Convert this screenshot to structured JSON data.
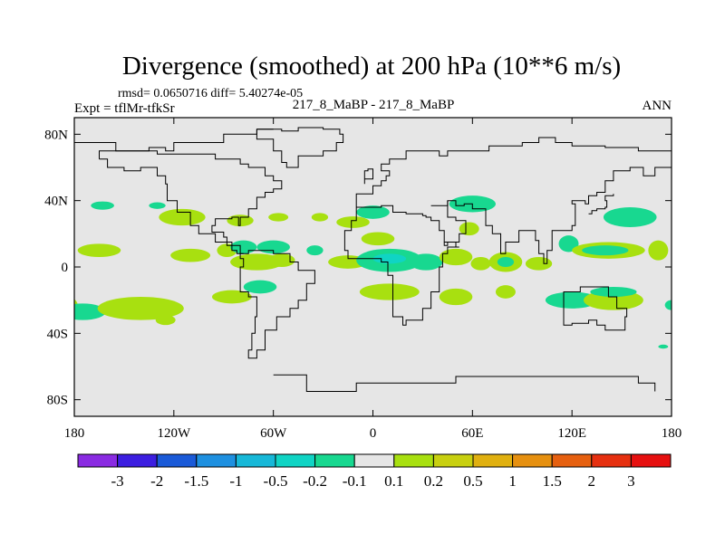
{
  "chart_data": {
    "type": "heatmap",
    "title": "Divergence (smoothed) at 200 hPa (10**6 m/s)",
    "stats_label": "rmsd= 0.0650716 diff= 5.40274e-05",
    "experiment_label": "Expt = tflMr-tfkSr",
    "case_label": "217_8_MaBP - 217_8_MaBP",
    "season_label": "ANN",
    "x_ticks": [
      {
        "value": -180,
        "label": "180"
      },
      {
        "value": -120,
        "label": "120W"
      },
      {
        "value": -60,
        "label": "60W"
      },
      {
        "value": 0,
        "label": "0"
      },
      {
        "value": 60,
        "label": "60E"
      },
      {
        "value": 120,
        "label": "120E"
      },
      {
        "value": 180,
        "label": "180"
      }
    ],
    "y_ticks": [
      {
        "value": 80,
        "label": "80N"
      },
      {
        "value": 40,
        "label": "40N"
      },
      {
        "value": 0,
        "label": "0"
      },
      {
        "value": -40,
        "label": "40S"
      },
      {
        "value": -80,
        "label": "80S"
      }
    ],
    "xlim": [
      -180,
      180
    ],
    "ylim": [
      -90,
      90
    ],
    "colorbar": {
      "colors": [
        "#8a2be2",
        "#3c1ee0",
        "#1a5ad8",
        "#1e90e0",
        "#17b8d8",
        "#10d4c4",
        "#18d890",
        "#e6e6e6",
        "#a8e010",
        "#c8d010",
        "#e0b010",
        "#e69010",
        "#e66010",
        "#e63010",
        "#e61010"
      ],
      "labels": [
        "-3",
        "-2",
        "-1.5",
        "-1",
        "-0.5",
        "-0.2",
        "-0.1",
        "0.1",
        "0.2",
        "0.5",
        "1",
        "1.5",
        "2",
        "3"
      ]
    },
    "colors": {
      "background_field": "#e6e6e6",
      "coast": "#000000",
      "pos_weak": "#a8e010",
      "neg_weak": "#18d890",
      "neg_mid": "#10d4c4"
    },
    "blobs": [
      {
        "lon": -163,
        "lat": 37,
        "w": 7,
        "h": 2.5,
        "level": "neg_weak"
      },
      {
        "lon": -130,
        "lat": 37,
        "w": 5,
        "h": 2,
        "level": "neg_weak"
      },
      {
        "lon": -115,
        "lat": 30,
        "w": 14,
        "h": 5,
        "level": "pos_weak"
      },
      {
        "lon": -80,
        "lat": 28,
        "w": 8,
        "h": 3.5,
        "level": "pos_weak"
      },
      {
        "lon": -57,
        "lat": 30,
        "w": 6,
        "h": 2.5,
        "level": "pos_weak"
      },
      {
        "lon": -32,
        "lat": 30,
        "w": 5,
        "h": 2.5,
        "level": "pos_weak"
      },
      {
        "lon": -12,
        "lat": 27,
        "w": 10,
        "h": 3.5,
        "level": "pos_weak"
      },
      {
        "lon": 0,
        "lat": 33,
        "w": 10,
        "h": 4,
        "level": "neg_weak"
      },
      {
        "lon": 3,
        "lat": 17,
        "w": 10,
        "h": 4,
        "level": "pos_weak"
      },
      {
        "lon": 60,
        "lat": 38,
        "w": 14,
        "h": 5,
        "level": "neg_weak"
      },
      {
        "lon": 58,
        "lat": 23,
        "w": 6,
        "h": 4,
        "level": "pos_weak"
      },
      {
        "lon": 155,
        "lat": 30,
        "w": 16,
        "h": 6,
        "level": "neg_weak"
      },
      {
        "lon": -165,
        "lat": 10,
        "w": 13,
        "h": 4,
        "level": "pos_weak"
      },
      {
        "lon": -110,
        "lat": 7,
        "w": 12,
        "h": 4,
        "level": "pos_weak"
      },
      {
        "lon": -88,
        "lat": 10,
        "w": 6,
        "h": 4,
        "level": "pos_weak"
      },
      {
        "lon": -78,
        "lat": 12,
        "w": 8,
        "h": 4,
        "level": "neg_weak"
      },
      {
        "lon": -60,
        "lat": 12,
        "w": 10,
        "h": 4,
        "level": "neg_weak"
      },
      {
        "lon": -70,
        "lat": 3,
        "w": 16,
        "h": 5,
        "level": "pos_weak"
      },
      {
        "lon": -55,
        "lat": 4,
        "w": 8,
        "h": 4,
        "level": "pos_weak"
      },
      {
        "lon": -35,
        "lat": 10,
        "w": 5,
        "h": 3,
        "level": "neg_weak"
      },
      {
        "lon": -15,
        "lat": 3,
        "w": 12,
        "h": 4,
        "level": "pos_weak"
      },
      {
        "lon": 10,
        "lat": 4,
        "w": 20,
        "h": 7,
        "level": "neg_weak"
      },
      {
        "lon": 10,
        "lat": 5,
        "w": 10,
        "h": 3,
        "level": "neg_mid"
      },
      {
        "lon": 32,
        "lat": 3,
        "w": 10,
        "h": 5,
        "level": "neg_weak"
      },
      {
        "lon": 50,
        "lat": 6,
        "w": 10,
        "h": 5,
        "level": "pos_weak"
      },
      {
        "lon": 65,
        "lat": 2,
        "w": 6,
        "h": 4,
        "level": "pos_weak"
      },
      {
        "lon": 80,
        "lat": 3,
        "w": 10,
        "h": 6,
        "level": "pos_weak"
      },
      {
        "lon": 80,
        "lat": 3,
        "w": 5,
        "h": 3,
        "level": "neg_weak"
      },
      {
        "lon": 100,
        "lat": 2,
        "w": 8,
        "h": 4,
        "level": "pos_weak"
      },
      {
        "lon": 118,
        "lat": 14,
        "w": 6,
        "h": 5,
        "level": "neg_weak"
      },
      {
        "lon": 142,
        "lat": 10,
        "w": 22,
        "h": 5,
        "level": "pos_weak"
      },
      {
        "lon": 140,
        "lat": 10,
        "w": 14,
        "h": 3,
        "level": "neg_weak"
      },
      {
        "lon": 172,
        "lat": 10,
        "w": 6,
        "h": 6,
        "level": "pos_weak"
      },
      {
        "lon": -182,
        "lat": -23,
        "w": 4,
        "h": 4,
        "level": "pos_weak"
      },
      {
        "lon": -175,
        "lat": -27,
        "w": 14,
        "h": 5,
        "level": "neg_weak"
      },
      {
        "lon": -140,
        "lat": -25,
        "w": 26,
        "h": 7,
        "level": "pos_weak"
      },
      {
        "lon": -125,
        "lat": -32,
        "w": 6,
        "h": 3,
        "level": "pos_weak"
      },
      {
        "lon": -85,
        "lat": -18,
        "w": 12,
        "h": 4,
        "level": "pos_weak"
      },
      {
        "lon": -68,
        "lat": -12,
        "w": 10,
        "h": 4,
        "level": "neg_weak"
      },
      {
        "lon": 10,
        "lat": -15,
        "w": 18,
        "h": 5,
        "level": "pos_weak"
      },
      {
        "lon": 50,
        "lat": -18,
        "w": 10,
        "h": 5,
        "level": "pos_weak"
      },
      {
        "lon": 80,
        "lat": -15,
        "w": 6,
        "h": 4,
        "level": "pos_weak"
      },
      {
        "lon": 120,
        "lat": -20,
        "w": 16,
        "h": 5,
        "level": "neg_weak"
      },
      {
        "lon": 145,
        "lat": -20,
        "w": 18,
        "h": 6,
        "level": "pos_weak"
      },
      {
        "lon": 145,
        "lat": -15,
        "w": 14,
        "h": 3,
        "level": "neg_weak"
      },
      {
        "lon": 180,
        "lat": -23,
        "w": 4,
        "h": 3,
        "level": "neg_weak"
      },
      {
        "lon": 175,
        "lat": -48,
        "w": 3,
        "h": 1.2,
        "level": "neg_weak"
      }
    ],
    "coastlines": [
      [
        [
          -180,
          75
        ],
        [
          -160,
          75
        ],
        [
          -155,
          70
        ],
        [
          -140,
          70
        ],
        [
          -135,
          72
        ],
        [
          -125,
          70
        ],
        [
          -120,
          75
        ],
        [
          -100,
          75
        ],
        [
          -90,
          80
        ],
        [
          -70,
          83
        ],
        [
          -60,
          83
        ]
      ],
      [
        [
          -70,
          83
        ],
        [
          -55,
          82
        ],
        [
          -45,
          84
        ],
        [
          -30,
          83
        ],
        [
          -20,
          80
        ],
        [
          -18,
          75
        ],
        [
          -22,
          70
        ],
        [
          -30,
          67
        ],
        [
          -45,
          60
        ],
        [
          -52,
          63
        ],
        [
          -55,
          70
        ],
        [
          -60,
          77
        ],
        [
          -70,
          83
        ]
      ],
      [
        [
          -165,
          65
        ],
        [
          -160,
          60
        ],
        [
          -150,
          58
        ],
        [
          -140,
          60
        ],
        [
          -130,
          55
        ],
        [
          -125,
          50
        ],
        [
          -124,
          40
        ],
        [
          -118,
          33
        ],
        [
          -110,
          25
        ],
        [
          -105,
          20
        ],
        [
          -95,
          15
        ],
        [
          -88,
          13
        ],
        [
          -80,
          8
        ],
        [
          -78,
          8
        ],
        [
          -82,
          10
        ],
        [
          -85,
          15
        ],
        [
          -88,
          18
        ],
        [
          -90,
          21
        ],
        [
          -97,
          25
        ],
        [
          -95,
          29
        ],
        [
          -85,
          30
        ],
        [
          -81,
          25
        ],
        [
          -80,
          30
        ],
        [
          -75,
          35
        ],
        [
          -70,
          42
        ],
        [
          -65,
          45
        ],
        [
          -60,
          47
        ],
        [
          -55,
          52
        ],
        [
          -60,
          55
        ],
        [
          -65,
          60
        ],
        [
          -75,
          62
        ],
        [
          -80,
          65
        ],
        [
          -90,
          65
        ],
        [
          -95,
          68
        ],
        [
          -110,
          68
        ],
        [
          -130,
          70
        ],
        [
          -150,
          70
        ],
        [
          -165,
          65
        ]
      ],
      [
        [
          -80,
          8
        ],
        [
          -75,
          10
        ],
        [
          -65,
          10
        ],
        [
          -60,
          8
        ],
        [
          -50,
          3
        ],
        [
          -45,
          -2
        ],
        [
          -35,
          -5
        ],
        [
          -35,
          -10
        ],
        [
          -40,
          -20
        ],
        [
          -45,
          -25
        ],
        [
          -50,
          -30
        ],
        [
          -58,
          -38
        ],
        [
          -65,
          -42
        ],
        [
          -65,
          -50
        ],
        [
          -70,
          -55
        ],
        [
          -75,
          -50
        ],
        [
          -73,
          -40
        ],
        [
          -71,
          -30
        ],
        [
          -70,
          -18
        ],
        [
          -75,
          -15
        ],
        [
          -80,
          -5
        ],
        [
          -80,
          0
        ],
        [
          -78,
          5
        ],
        [
          -80,
          8
        ]
      ],
      [
        [
          -10,
          36
        ],
        [
          -5,
          36
        ],
        [
          5,
          37
        ],
        [
          10,
          37
        ],
        [
          12,
          33
        ],
        [
          20,
          32
        ],
        [
          30,
          31
        ],
        [
          32,
          30
        ],
        [
          35,
          28
        ],
        [
          40,
          22
        ],
        [
          43,
          15
        ],
        [
          50,
          12
        ],
        [
          52,
          12
        ],
        [
          45,
          8
        ],
        [
          42,
          0
        ],
        [
          40,
          -5
        ],
        [
          40,
          -15
        ],
        [
          35,
          -25
        ],
        [
          30,
          -32
        ],
        [
          20,
          -35
        ],
        [
          18,
          -30
        ],
        [
          12,
          -18
        ],
        [
          12,
          -5
        ],
        [
          9,
          3
        ],
        [
          5,
          5
        ],
        [
          -5,
          5
        ],
        [
          -10,
          5
        ],
        [
          -15,
          10
        ],
        [
          -17,
          15
        ],
        [
          -17,
          22
        ],
        [
          -13,
          28
        ],
        [
          -10,
          36
        ]
      ],
      [
        [
          -10,
          36
        ],
        [
          -10,
          44
        ],
        [
          -5,
          44
        ],
        [
          0,
          49
        ],
        [
          5,
          52
        ],
        [
          8,
          55
        ],
        [
          10,
          58
        ],
        [
          5,
          62
        ],
        [
          10,
          65
        ],
        [
          20,
          70
        ],
        [
          30,
          70
        ],
        [
          40,
          67
        ],
        [
          45,
          70
        ],
        [
          60,
          70
        ],
        [
          70,
          73
        ],
        [
          80,
          73
        ],
        [
          90,
          75
        ],
        [
          100,
          78
        ],
        [
          110,
          75
        ],
        [
          120,
          73
        ],
        [
          140,
          72
        ],
        [
          160,
          70
        ],
        [
          170,
          70
        ],
        [
          180,
          67
        ]
      ],
      [
        [
          35,
          37
        ],
        [
          45,
          40
        ],
        [
          50,
          37
        ],
        [
          55,
          38
        ],
        [
          60,
          35
        ],
        [
          68,
          25
        ],
        [
          72,
          20
        ],
        [
          77,
          8
        ],
        [
          80,
          15
        ],
        [
          88,
          22
        ],
        [
          92,
          22
        ],
        [
          98,
          16
        ],
        [
          100,
          8
        ],
        [
          103,
          2
        ],
        [
          105,
          10
        ],
        [
          108,
          16
        ],
        [
          108,
          22
        ],
        [
          120,
          25
        ],
        [
          122,
          30
        ],
        [
          122,
          38
        ],
        [
          120,
          40
        ],
        [
          128,
          38
        ],
        [
          130,
          43
        ],
        [
          135,
          45
        ],
        [
          140,
          52
        ],
        [
          145,
          58
        ],
        [
          155,
          60
        ],
        [
          160,
          60
        ],
        [
          163,
          55
        ],
        [
          170,
          60
        ],
        [
          180,
          65
        ]
      ],
      [
        [
          45,
          40
        ],
        [
          45,
          30
        ],
        [
          50,
          28
        ],
        [
          56,
          25
        ],
        [
          56,
          20
        ],
        [
          52,
          15
        ],
        [
          45,
          13
        ],
        [
          43,
          15
        ]
      ],
      [
        [
          115,
          -22
        ],
        [
          115,
          -35
        ],
        [
          120,
          -34
        ],
        [
          130,
          -32
        ],
        [
          135,
          -35
        ],
        [
          140,
          -38
        ],
        [
          148,
          -38
        ],
        [
          152,
          -30
        ],
        [
          153,
          -25
        ],
        [
          147,
          -18
        ],
        [
          142,
          -12
        ],
        [
          137,
          -12
        ],
        [
          130,
          -12
        ],
        [
          125,
          -15
        ],
        [
          115,
          -22
        ]
      ],
      [
        [
          130,
          32
        ],
        [
          132,
          34
        ],
        [
          135,
          35
        ],
        [
          140,
          36
        ],
        [
          141,
          40
        ],
        [
          140,
          43
        ],
        [
          145,
          44
        ]
      ],
      [
        [
          -5,
          50
        ],
        [
          -5,
          58
        ],
        [
          -3,
          59
        ],
        [
          0,
          53
        ],
        [
          -5,
          50
        ]
      ],
      [
        [
          -60,
          -65
        ],
        [
          -40,
          -75
        ],
        [
          -10,
          -70
        ],
        [
          20,
          -70
        ],
        [
          50,
          -66
        ],
        [
          80,
          -66
        ],
        [
          110,
          -66
        ],
        [
          140,
          -66
        ],
        [
          160,
          -70
        ],
        [
          170,
          -75
        ]
      ]
    ]
  }
}
